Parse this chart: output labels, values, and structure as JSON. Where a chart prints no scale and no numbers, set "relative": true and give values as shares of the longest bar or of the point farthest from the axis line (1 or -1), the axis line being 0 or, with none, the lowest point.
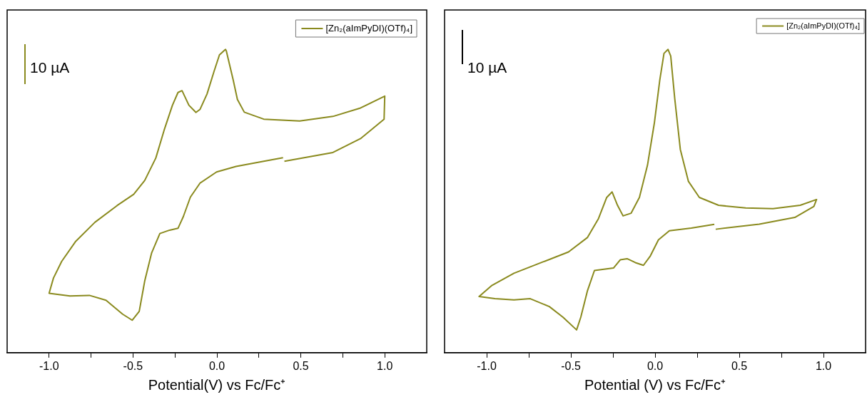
{
  "chart_data": [
    {
      "type": "line",
      "xlabel": "Potential(V) vs Fc/Fc⁺",
      "xlim": [
        -1.25,
        1.25
      ],
      "xticks": [
        {
          "value": -1,
          "label": "-1.0"
        },
        {
          "value": -0.75,
          "label": null
        },
        {
          "value": -0.5,
          "label": "-0.5"
        },
        {
          "value": -0.25,
          "label": null
        },
        {
          "value": 0,
          "label": "0.0"
        },
        {
          "value": 0.25,
          "label": null
        },
        {
          "value": 0.5,
          "label": "0.5"
        },
        {
          "value": 0.75,
          "label": null
        },
        {
          "value": 1,
          "label": "1.0"
        }
      ],
      "relative": true,
      "legend": "top right",
      "annotations": [
        "10 µA"
      ],
      "series": [
        {
          "name": "[Zn₂(aImPyDI)(OTf)₄]",
          "color": "#8a8a1e",
          "x": [
            0.402,
            0.691,
            0.856,
            0.996,
            1.0,
            0.856,
            0.691,
            0.493,
            0.279,
            0.163,
            0.122,
            0.097,
            0.056,
            0.051,
            0.015,
            -0.018,
            -0.059,
            -0.101,
            -0.125,
            -0.167,
            -0.208,
            -0.232,
            -0.265,
            -0.315,
            -0.364,
            -0.43,
            -0.496,
            -0.595,
            -0.727,
            -0.843,
            -0.925,
            -0.974,
            -1.0,
            -0.876,
            -0.76,
            -0.661,
            -0.562,
            -0.505,
            -0.463,
            -0.43,
            -0.389,
            -0.34,
            -0.282,
            -0.232,
            -0.2,
            -0.158,
            -0.101,
            -0.002,
            0.114,
            0.279,
            0.394
          ],
          "values": [
            0.631,
            0.66,
            0.706,
            0.77,
            0.846,
            0.807,
            0.779,
            0.764,
            0.77,
            0.793,
            0.835,
            0.899,
            0.995,
            1.0,
            0.982,
            0.926,
            0.853,
            0.802,
            0.792,
            0.816,
            0.864,
            0.858,
            0.816,
            0.733,
            0.642,
            0.568,
            0.522,
            0.485,
            0.43,
            0.366,
            0.301,
            0.246,
            0.196,
            0.187,
            0.189,
            0.173,
            0.127,
            0.107,
            0.136,
            0.237,
            0.329,
            0.393,
            0.404,
            0.41,
            0.449,
            0.513,
            0.559,
            0.596,
            0.614,
            0.631,
            0.643
          ]
        }
      ]
    },
    {
      "type": "line",
      "xlabel": "Potential (V) vs Fc/Fc⁺",
      "xlim": [
        -1.25,
        1.25
      ],
      "xticks": [
        {
          "value": -1,
          "label": "-1.0"
        },
        {
          "value": -0.75,
          "label": null
        },
        {
          "value": -0.5,
          "label": "-0.5"
        },
        {
          "value": -0.25,
          "label": null
        },
        {
          "value": 0,
          "label": "0.0"
        },
        {
          "value": 0.25,
          "label": null
        },
        {
          "value": 0.5,
          "label": "0.5"
        },
        {
          "value": 0.75,
          "label": null
        },
        {
          "value": 1,
          "label": "1.0"
        }
      ],
      "relative": true,
      "legend": "top right",
      "annotations": [
        "10 µA"
      ],
      "series": [
        {
          "name": "[Zn₂(aImPyDI)(OTf)₄]",
          "color": "#8a8a1e",
          "x": [
            0.36,
            0.619,
            0.83,
            0.943,
            0.959,
            0.862,
            0.7,
            0.538,
            0.377,
            0.263,
            0.198,
            0.15,
            0.117,
            0.093,
            0.077,
            0.053,
            0.028,
            -0.004,
            -0.045,
            -0.093,
            -0.142,
            -0.19,
            -0.223,
            -0.255,
            -0.287,
            -0.336,
            -0.401,
            -0.514,
            -0.676,
            -0.838,
            -0.968,
            -1.045,
            -0.951,
            -0.838,
            -0.741,
            -0.628,
            -0.547,
            -0.466,
            -0.441,
            -0.401,
            -0.36,
            -0.304,
            -0.247,
            -0.207,
            -0.166,
            -0.117,
            -0.069,
            -0.028,
            0.02,
            0.085,
            0.215,
            0.352
          ],
          "values": [
            0.407,
            0.424,
            0.446,
            0.482,
            0.505,
            0.486,
            0.475,
            0.477,
            0.486,
            0.512,
            0.565,
            0.67,
            0.837,
            0.978,
            1.0,
            0.987,
            0.899,
            0.758,
            0.618,
            0.512,
            0.46,
            0.451,
            0.486,
            0.53,
            0.512,
            0.442,
            0.38,
            0.332,
            0.297,
            0.262,
            0.222,
            0.185,
            0.178,
            0.174,
            0.178,
            0.152,
            0.117,
            0.075,
            0.117,
            0.205,
            0.271,
            0.275,
            0.279,
            0.306,
            0.31,
            0.297,
            0.288,
            0.319,
            0.372,
            0.402,
            0.411,
            0.423
          ]
        }
      ]
    }
  ]
}
